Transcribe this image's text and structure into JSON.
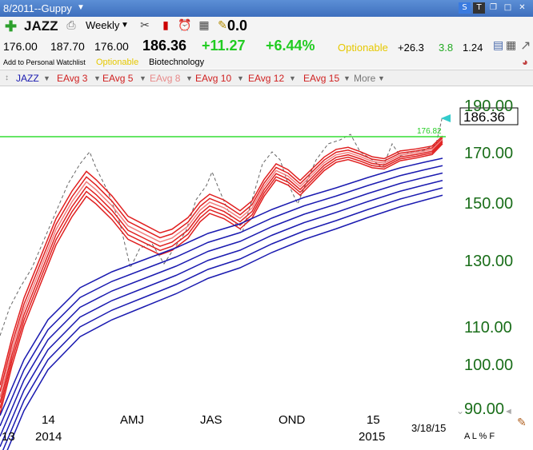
{
  "window": {
    "title": "8/2011--Guppy"
  },
  "toolbar": {
    "symbol": "JAZZ",
    "interval": "Weekly",
    "value_box": "0.0"
  },
  "quote": {
    "open": "176.00",
    "high": "187.70",
    "low": "176.00",
    "last": "186.36",
    "change": "+11.27",
    "pct_change": "+6.44%",
    "optionable": "Optionable",
    "v1": "+26.3",
    "v2": "3.8",
    "v3": "1.24"
  },
  "info": {
    "watchlist": "Add to Personal Watchlist",
    "optionable": "Optionable",
    "industry": "Biotechnology"
  },
  "legend": {
    "symbol": "JAZZ",
    "items": [
      "EAvg 3",
      "EAvg 5",
      "EAvg 8",
      "EAvg 10",
      "EAvg 12",
      "EAvg 15",
      "More"
    ]
  },
  "chart_data": {
    "type": "line",
    "x": [
      "13",
      "14",
      "2014",
      "AMJ",
      "JAS",
      "OND",
      "15",
      "2015",
      "3/18/15"
    ],
    "yticks": [
      "190.00",
      "170.00",
      "150.00",
      "130.00",
      "110.00",
      "100.00",
      "90.00"
    ],
    "ylim": [
      88,
      195
    ],
    "log_scale": true,
    "horizontal_line": 176.82,
    "horizontal_line_label": "176.82",
    "last_price_label": "186.36",
    "colors": {
      "short": "#e02020",
      "short_light": "#f08080",
      "long": "#1a1ab0",
      "price": "#555555",
      "hline": "#33dd33"
    }
  },
  "footer": {
    "right_text": "A L % F"
  }
}
